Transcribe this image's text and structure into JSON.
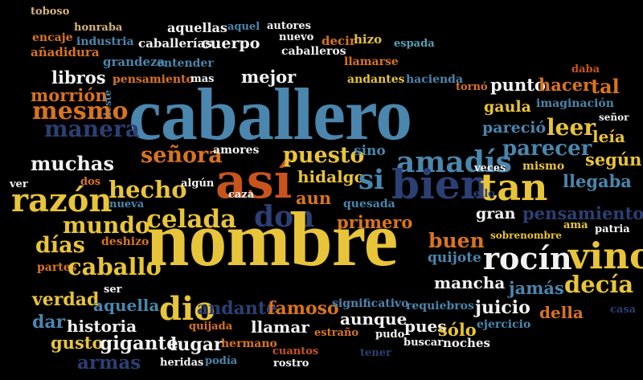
{
  "palette": {
    "background": "#000000",
    "yellow": "#e8c43a",
    "steel_blue": "#4a86ad",
    "navy": "#2c3f73",
    "orange": "#d9741f",
    "rust": "#c8541c",
    "white": "#f2f2f2",
    "sand": "#d8b27a",
    "teal": "#5aa0b4"
  },
  "words": [
    {
      "text": "toboso",
      "color": "sand"
    },
    {
      "text": "honraba",
      "color": "sand"
    },
    {
      "text": "aquellas",
      "color": "white"
    },
    {
      "text": "aquel",
      "color": "steel_blue"
    },
    {
      "text": "autores",
      "color": "white"
    },
    {
      "text": "encaje",
      "color": "orange"
    },
    {
      "text": "industria",
      "color": "steel_blue"
    },
    {
      "text": "caballerías",
      "color": "white"
    },
    {
      "text": "cuerpo",
      "color": "white"
    },
    {
      "text": "nuevo",
      "color": "white"
    },
    {
      "text": "decir",
      "color": "orange"
    },
    {
      "text": "hizo",
      "color": "yellow"
    },
    {
      "text": "espada",
      "color": "teal"
    },
    {
      "text": "añadidura",
      "color": "orange"
    },
    {
      "text": "grandeza",
      "color": "steel_blue"
    },
    {
      "text": "entender",
      "color": "steel_blue"
    },
    {
      "text": "caballeros",
      "color": "white"
    },
    {
      "text": "llamarse",
      "color": "orange"
    },
    {
      "text": "libros",
      "color": "white"
    },
    {
      "text": "pensamiento",
      "color": "orange"
    },
    {
      "text": "mas",
      "color": "white"
    },
    {
      "text": "mejor",
      "color": "white"
    },
    {
      "text": "andantes",
      "color": "yellow"
    },
    {
      "text": "hacienda",
      "color": "steel_blue"
    },
    {
      "text": "daba",
      "color": "rust"
    },
    {
      "text": "tornó",
      "color": "orange"
    },
    {
      "text": "punto",
      "color": "white"
    },
    {
      "text": "hacer",
      "color": "orange"
    },
    {
      "text": "tal",
      "color": "orange"
    },
    {
      "text": "morrión",
      "color": "orange"
    },
    {
      "text": "deste",
      "color": "steel_blue"
    },
    {
      "text": "caballero",
      "color": "steel_blue"
    },
    {
      "text": "gaula",
      "color": "yellow"
    },
    {
      "text": "imaginación",
      "color": "steel_blue"
    },
    {
      "text": "mesmo",
      "color": "orange"
    },
    {
      "text": "señor",
      "color": "white"
    },
    {
      "text": "manera",
      "color": "navy"
    },
    {
      "text": "leer",
      "color": "yellow"
    },
    {
      "text": "leía",
      "color": "yellow"
    },
    {
      "text": "pareció",
      "color": "steel_blue"
    },
    {
      "text": "parecer",
      "color": "steel_blue"
    },
    {
      "text": "muchas",
      "color": "white"
    },
    {
      "text": "señora",
      "color": "orange"
    },
    {
      "text": "amores",
      "color": "white"
    },
    {
      "text": "así",
      "color": "rust"
    },
    {
      "text": "puesto",
      "color": "yellow"
    },
    {
      "text": "sino",
      "color": "steel_blue"
    },
    {
      "text": "amadís",
      "color": "steel_blue"
    },
    {
      "text": "mismo",
      "color": "yellow"
    },
    {
      "text": "según",
      "color": "yellow"
    },
    {
      "text": "veces",
      "color": "white"
    },
    {
      "text": "ver",
      "color": "white"
    },
    {
      "text": "dos",
      "color": "orange"
    },
    {
      "text": "hecho",
      "color": "yellow"
    },
    {
      "text": "algún",
      "color": "white"
    },
    {
      "text": "hidalgo",
      "color": "yellow"
    },
    {
      "text": "si",
      "color": "steel_blue"
    },
    {
      "text": "bien",
      "color": "navy"
    },
    {
      "text": "tan",
      "color": "yellow"
    },
    {
      "text": "llegaba",
      "color": "steel_blue"
    },
    {
      "text": "razón",
      "color": "yellow"
    },
    {
      "text": "celada",
      "color": "yellow"
    },
    {
      "text": "caza",
      "color": "white"
    },
    {
      "text": "aun",
      "color": "orange"
    },
    {
      "text": "ello",
      "color": "navy"
    },
    {
      "text": "nueva",
      "color": "steel_blue"
    },
    {
      "text": "don",
      "color": "navy"
    },
    {
      "text": "quesada",
      "color": "steel_blue"
    },
    {
      "text": "gran",
      "color": "white"
    },
    {
      "text": "pensamientos",
      "color": "navy"
    },
    {
      "text": "mundo",
      "color": "yellow"
    },
    {
      "text": "primero",
      "color": "orange"
    },
    {
      "text": "ama",
      "color": "yellow"
    },
    {
      "text": "patria",
      "color": "white"
    },
    {
      "text": "días",
      "color": "yellow"
    },
    {
      "text": "deshizo",
      "color": "orange"
    },
    {
      "text": "nombre",
      "color": "yellow"
    },
    {
      "text": "buen",
      "color": "orange"
    },
    {
      "text": "sobrenombre",
      "color": "yellow"
    },
    {
      "text": "partes",
      "color": "orange"
    },
    {
      "text": "caballo",
      "color": "yellow"
    },
    {
      "text": "quijote",
      "color": "steel_blue"
    },
    {
      "text": "rocín",
      "color": "white"
    },
    {
      "text": "vino",
      "color": "yellow"
    },
    {
      "text": "verdad",
      "color": "yellow"
    },
    {
      "text": "ser",
      "color": "white"
    },
    {
      "text": "mancha",
      "color": "white"
    },
    {
      "text": "jamás",
      "color": "steel_blue"
    },
    {
      "text": "decía",
      "color": "yellow"
    },
    {
      "text": "aquella",
      "color": "steel_blue"
    },
    {
      "text": "dio",
      "color": "yellow"
    },
    {
      "text": "andante",
      "color": "navy"
    },
    {
      "text": "famoso",
      "color": "orange"
    },
    {
      "text": "significativo",
      "color": "steel_blue"
    },
    {
      "text": "juicio",
      "color": "white"
    },
    {
      "text": "della",
      "color": "orange"
    },
    {
      "text": "casa",
      "color": "navy"
    },
    {
      "text": "dar",
      "color": "steel_blue"
    },
    {
      "text": "historia",
      "color": "white"
    },
    {
      "text": "aunque",
      "color": "white"
    },
    {
      "text": "requiebros",
      "color": "steel_blue"
    },
    {
      "text": "quijada",
      "color": "orange"
    },
    {
      "text": "llamar",
      "color": "white"
    },
    {
      "text": "pues",
      "color": "white"
    },
    {
      "text": "sólo",
      "color": "yellow"
    },
    {
      "text": "ejercicio",
      "color": "steel_blue"
    },
    {
      "text": "gusto",
      "color": "yellow"
    },
    {
      "text": "gigante",
      "color": "white"
    },
    {
      "text": "lugar",
      "color": "white"
    },
    {
      "text": "estraño",
      "color": "orange"
    },
    {
      "text": "pudo",
      "color": "white"
    },
    {
      "text": "hermano",
      "color": "orange"
    },
    {
      "text": "cuantos",
      "color": "rust"
    },
    {
      "text": "buscar",
      "color": "white"
    },
    {
      "text": "noches",
      "color": "white"
    },
    {
      "text": "armas",
      "color": "navy"
    },
    {
      "text": "heridas",
      "color": "white"
    },
    {
      "text": "podía",
      "color": "steel_blue"
    },
    {
      "text": "rostro",
      "color": "white"
    },
    {
      "text": "tener",
      "color": "navy"
    }
  ]
}
